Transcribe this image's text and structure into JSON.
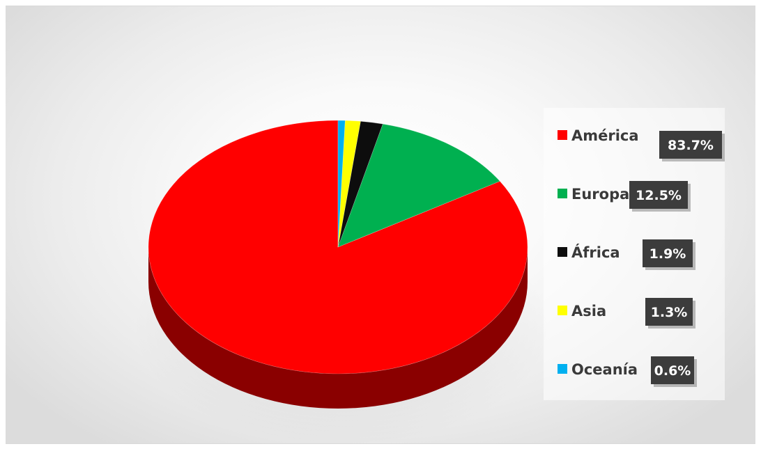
{
  "chart_data": {
    "type": "pie",
    "style": "3d",
    "title": "",
    "legend_position": "right",
    "slices": [
      {
        "name": "América",
        "value": 83.7,
        "label": "83.7%",
        "color": "#ff0000",
        "side_color": "#8a0000"
      },
      {
        "name": "Europa",
        "value": 12.5,
        "label": "12.5%",
        "color": "#00b050",
        "side_color": "#006b30"
      },
      {
        "name": "África",
        "value": 1.9,
        "label": "1.9%",
        "color": "#0d0d0d",
        "side_color": "#000000"
      },
      {
        "name": "Asia",
        "value": 1.3,
        "label": "1.3%",
        "color": "#ffff00",
        "side_color": "#9a9a00"
      },
      {
        "name": "Oceanía",
        "value": 0.6,
        "label": "0.6%",
        "color": "#00b0f0",
        "side_color": "#006a90"
      }
    ]
  }
}
